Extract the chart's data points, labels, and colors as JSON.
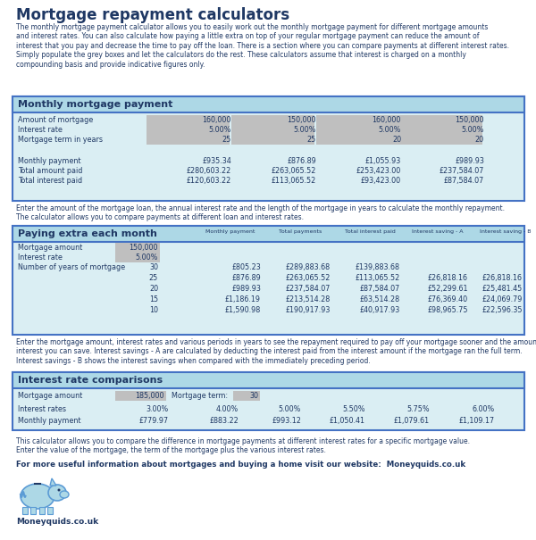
{
  "title": "Mortgage repayment calculators",
  "bg_color": "#ffffff",
  "intro_text": "The monthly mortgage payment calculator allows you to easily work out the monthly mortgage payment for different mortgage amounts\nand interest rates. You can also calculate how paying a little extra on top of your regular mortgage payment can reduce the amount of\ninterest that you pay and decrease the time to pay off the loan. There is a section where you can compare payments at different interest rates.\nSimply populate the grey boxes and let the calculators do the rest. These calculators assume that interest is charged on a monthly\ncompounding basis and provide indicative figures only.",
  "section1_title": "Monthly mortgage payment",
  "section1_header_bg": "#add8e6",
  "section1_bg": "#daeef3",
  "section1_rows": [
    [
      "Amount of mortgage",
      "160,000",
      "150,000",
      "160,000",
      "150,000"
    ],
    [
      "Interest rate",
      "5.00%",
      "5.00%",
      "5.00%",
      "5.00%"
    ],
    [
      "Mortgage term in years",
      "25",
      "25",
      "20",
      "20"
    ],
    [
      "",
      "",
      "",
      "",
      ""
    ],
    [
      "Monthly payment",
      "£935.34",
      "£876.89",
      "£1,055.93",
      "£989.93"
    ],
    [
      "Total amount paid",
      "£280,603.22",
      "£263,065.52",
      "£253,423.00",
      "£237,584.07"
    ],
    [
      "Total interest paid",
      "£120,603.22",
      "£113,065.52",
      "£93,423.00",
      "£87,584.07"
    ]
  ],
  "mid_text1": "Enter the amount of the mortgage loan, the annual interest rate and the length of the mortgage in years to calculate the monthly repayment.\nThe calculator allows you to compare payments at different loan and interest rates.",
  "section2_title": "Paying extra each month",
  "section2_header_bg": "#add8e6",
  "section2_bg": "#daeef3",
  "section2_col_headers": [
    "Monthly payment",
    "Total payments",
    "Total interest paid",
    "Interest saving - A",
    "Interest saving - B"
  ],
  "section2_rows": [
    [
      "Mortgage amount",
      "150,000",
      "",
      "",
      "",
      "",
      ""
    ],
    [
      "Interest rate",
      "5.00%",
      "",
      "",
      "",
      "",
      ""
    ],
    [
      "Number of years of mortgage",
      "30",
      "£805.23",
      "£289,883.68",
      "£139,883.68",
      "",
      ""
    ],
    [
      "",
      "25",
      "£876.89",
      "£263,065.52",
      "£113,065.52",
      "£26,818.16",
      "£26,818.16"
    ],
    [
      "",
      "20",
      "£989.93",
      "£237,584.07",
      "£87,584.07",
      "£52,299.61",
      "£25,481.45"
    ],
    [
      "",
      "15",
      "£1,186.19",
      "£213,514.28",
      "£63,514.28",
      "£76,369.40",
      "£24,069.79"
    ],
    [
      "",
      "10",
      "£1,590.98",
      "£190,917.93",
      "£40,917.93",
      "£98,965.75",
      "£22,596.35"
    ]
  ],
  "mid_text2": "Enter the mortgage amount, interest rates and various periods in years to see the repayment required to pay off your mortgage sooner and the amount of\ninterest you can save. Interest savings - A are calculated by deducting the interest paid from the interest amount if the mortgage ran the full term.\nInterest savings - B shows the interest savings when compared with the immediately preceding period.",
  "section3_title": "Interest rate comparisons",
  "section3_header_bg": "#add8e6",
  "section3_bg": "#daeef3",
  "section3_rows": [
    [
      "Mortgage amount",
      "185,000",
      "Mortgage term:",
      "30",
      "",
      "",
      ""
    ],
    [
      "Interest rates",
      "3.00%",
      "4.00%",
      "5.00%",
      "5.50%",
      "5.75%",
      "6.00%"
    ],
    [
      "Monthly payment",
      "£779.97",
      "£883.22",
      "£993.12",
      "£1,050.41",
      "£1,079.61",
      "£1,109.17"
    ]
  ],
  "footer_text1": "This calculator allows you to compare the difference in mortgage payments at different interest rates for a specific mortgage value.\nEnter the value of the mortgage, the term of the mortgage plus the various interest rates.",
  "footer_text2": "For more useful information about mortgages and buying a home visit our website:  Moneyquids.co.uk",
  "footer_brand": "Moneyquids.co.uk",
  "text_color": "#1f3864",
  "cell_color_grey": "#bfbfbf",
  "border_color": "#4472c4"
}
